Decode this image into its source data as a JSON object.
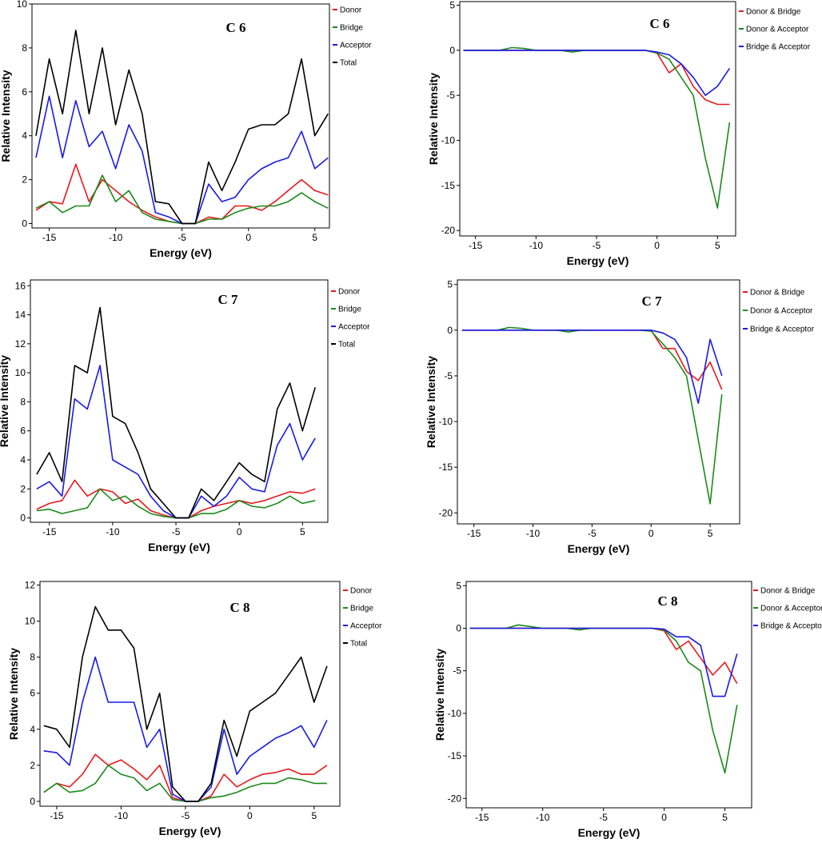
{
  "chart_data": [
    {
      "type": "line",
      "title": "C 6",
      "x_label": "Energy (eV)",
      "y_label": "Relative Intensity",
      "x": [
        -16,
        -15,
        -14,
        -13,
        -12,
        -11,
        -10,
        -9,
        -8,
        -7,
        -6,
        -5,
        -4,
        -3,
        -2,
        -1,
        0,
        1,
        2,
        3,
        4,
        5,
        6
      ],
      "xlim": [
        -16.3,
        6.1
      ],
      "ylim": [
        -0.2,
        10
      ],
      "xticks": [
        -15,
        -10,
        -5,
        0,
        5
      ],
      "yticks": [
        0,
        2,
        4,
        6,
        8,
        10
      ],
      "series": [
        {
          "name": "Donor",
          "color": "#e8191c",
          "values": [
            0.6,
            1,
            0.9,
            2.7,
            1,
            2,
            1.5,
            1,
            0.6,
            0.3,
            0.1,
            0,
            0,
            0.3,
            0.2,
            0.8,
            0.8,
            0.6,
            1,
            1.5,
            2,
            1.5,
            1.3
          ]
        },
        {
          "name": "Bridge",
          "color": "#1a8a1a",
          "values": [
            0.7,
            1,
            0.5,
            0.8,
            0.8,
            2.2,
            1,
            1.5,
            0.5,
            0.2,
            0.1,
            0,
            0,
            0.2,
            0.2,
            0.5,
            0.7,
            0.8,
            0.8,
            1,
            1.4,
            1,
            0.7
          ]
        },
        {
          "name": "Acceptor",
          "color": "#1a1ae8",
          "values": [
            3,
            5.8,
            3,
            5.6,
            3.5,
            4.2,
            2.5,
            4.5,
            3.3,
            0.5,
            0.3,
            0,
            0,
            1.8,
            1,
            1.2,
            2,
            2.5,
            2.8,
            3,
            4.2,
            2.5,
            3
          ]
        },
        {
          "name": "Total",
          "color": "#000000",
          "values": [
            4,
            7.5,
            5,
            8.8,
            5,
            8,
            4.5,
            7,
            5,
            1,
            0.9,
            0,
            0,
            2.8,
            1.5,
            2.8,
            4.3,
            4.5,
            4.5,
            5,
            7.5,
            4,
            5
          ]
        }
      ]
    },
    {
      "type": "line",
      "title": "C 6",
      "x_label": "Energy (eV)",
      "y_label": "Relative Intensity",
      "x": [
        -16,
        -15,
        -14,
        -13,
        -12,
        -11,
        -10,
        -9,
        -8,
        -7,
        -6,
        -5,
        -4,
        -3,
        -2,
        -1,
        0,
        1,
        2,
        3,
        4,
        5,
        6
      ],
      "xlim": [
        -16.3,
        6.5
      ],
      "ylim": [
        -20.6,
        5.4
      ],
      "xticks": [
        -15,
        -10,
        -5,
        0,
        5
      ],
      "yticks": [
        -20,
        -15,
        -10,
        -5,
        0,
        5
      ],
      "series": [
        {
          "name": "Donor & Bridge",
          "color": "#e8191c",
          "values": [
            0,
            0,
            0,
            0,
            0,
            0,
            0,
            0,
            0,
            0,
            0,
            0,
            0,
            0,
            0,
            0,
            -0.3,
            -2.5,
            -1.5,
            -4,
            -5.5,
            -6,
            -6
          ]
        },
        {
          "name": "Donor & Acceptor",
          "color": "#1a8a1a",
          "values": [
            0,
            0,
            0,
            0,
            0.3,
            0.2,
            0,
            0,
            0,
            -0.2,
            0,
            0,
            0,
            0,
            0,
            0,
            -0.3,
            -1,
            -3,
            -5,
            -12,
            -17.5,
            -8
          ]
        },
        {
          "name": "Bridge & Acceptor",
          "color": "#1a1ae8",
          "values": [
            0,
            0,
            0,
            0,
            0,
            0,
            0,
            0,
            0,
            0,
            0,
            0,
            0,
            0,
            0,
            0,
            -0.2,
            -0.5,
            -1.5,
            -3,
            -5,
            -4,
            -2
          ]
        }
      ]
    },
    {
      "type": "line",
      "title": "C 7",
      "x_label": "Energy (eV)",
      "y_label": "Relative Intensity",
      "x": [
        -16,
        -15,
        -14,
        -13,
        -12,
        -11,
        -10,
        -9,
        -8,
        -7,
        -6,
        -5,
        -4,
        -3,
        -2,
        -1,
        0,
        1,
        2,
        3,
        4,
        5,
        6
      ],
      "xlim": [
        -16.5,
        7
      ],
      "ylim": [
        -0.3,
        16.4
      ],
      "xticks": [
        -15,
        -10,
        -5,
        0,
        5
      ],
      "yticks": [
        0,
        2,
        4,
        6,
        8,
        10,
        12,
        14,
        16
      ],
      "series": [
        {
          "name": "Donor",
          "color": "#e8191c",
          "values": [
            0.6,
            1,
            1.2,
            2.6,
            1.5,
            2,
            1.8,
            1,
            1.3,
            0.5,
            0.2,
            0,
            0,
            0.5,
            0.8,
            1,
            1.2,
            1,
            1.2,
            1.5,
            1.8,
            1.7,
            2
          ]
        },
        {
          "name": "Bridge",
          "color": "#1a8a1a",
          "values": [
            0.5,
            0.6,
            0.3,
            0.5,
            0.7,
            2,
            1.2,
            1.5,
            0.8,
            0.3,
            0.1,
            0,
            0,
            0.3,
            0.3,
            0.6,
            1.2,
            0.8,
            0.7,
            1,
            1.5,
            1,
            1.2
          ]
        },
        {
          "name": "Acceptor",
          "color": "#1a1ae8",
          "values": [
            2,
            2.5,
            1.5,
            8.2,
            7.5,
            10.5,
            4,
            3.5,
            3,
            1.5,
            0.5,
            0,
            0,
            1.5,
            0.8,
            1.5,
            2.8,
            2,
            1.8,
            5,
            6.5,
            4,
            5.5
          ]
        },
        {
          "name": "Total",
          "color": "#000000",
          "values": [
            3,
            4.5,
            2.5,
            10.5,
            10,
            14.5,
            7,
            6.5,
            4.5,
            2,
            1,
            0,
            0,
            2,
            1.2,
            2.5,
            3.8,
            3,
            2.5,
            7.5,
            9.3,
            6,
            9
          ]
        }
      ]
    },
    {
      "type": "line",
      "title": "C 7",
      "x_label": "Energy (eV)",
      "y_label": "Relative Intensity",
      "x": [
        -16,
        -15,
        -14,
        -13,
        -12,
        -11,
        -10,
        -9,
        -8,
        -7,
        -6,
        -5,
        -4,
        -3,
        -2,
        -1,
        0,
        1,
        2,
        3,
        4,
        5,
        6
      ],
      "xlim": [
        -16.4,
        7.5
      ],
      "ylim": [
        -21.2,
        5.5
      ],
      "xticks": [
        -15,
        -10,
        -5,
        0,
        5
      ],
      "yticks": [
        -20,
        -15,
        -10,
        -5,
        0,
        5
      ],
      "series": [
        {
          "name": "Donor & Bridge",
          "color": "#e8191c",
          "values": [
            0,
            0,
            0,
            0,
            0,
            0,
            0,
            0,
            0,
            0,
            0,
            0,
            0,
            0,
            0,
            0,
            0,
            -2,
            -2,
            -4.5,
            -5.5,
            -3.5,
            -6.5
          ]
        },
        {
          "name": "Donor & Acceptor",
          "color": "#1a8a1a",
          "values": [
            0,
            0,
            0,
            0,
            0.3,
            0.2,
            0,
            0,
            0,
            -0.2,
            0,
            0,
            0,
            0,
            0,
            0,
            -0.1,
            -1.5,
            -3,
            -5,
            -12,
            -19,
            -7
          ]
        },
        {
          "name": "Bridge & Acceptor",
          "color": "#1a1ae8",
          "values": [
            0,
            0,
            0,
            0,
            0,
            0,
            0,
            0,
            0,
            0,
            0,
            0,
            0,
            0,
            0,
            0,
            0,
            -0.3,
            -1,
            -3,
            -8,
            -1,
            -5
          ]
        }
      ]
    },
    {
      "type": "line",
      "title": "C 8",
      "x_label": "Energy (eV)",
      "y_label": "Relative Intensity",
      "x": [
        -16,
        -15,
        -14,
        -13,
        -12,
        -11,
        -10,
        -9,
        -8,
        -7,
        -6,
        -5,
        -4,
        -3,
        -2,
        -1,
        0,
        1,
        2,
        3,
        4,
        5,
        6
      ],
      "xlim": [
        -16.3,
        7
      ],
      "ylim": [
        -0.27,
        12.2
      ],
      "xticks": [
        -15,
        -10,
        -5,
        0,
        5
      ],
      "yticks": [
        0,
        2,
        4,
        6,
        8,
        10,
        12
      ],
      "series": [
        {
          "name": "Donor",
          "color": "#e8191c",
          "values": [
            0.5,
            1,
            0.8,
            1.5,
            2.6,
            2,
            2.3,
            1.8,
            1.2,
            2,
            0.2,
            0,
            0,
            0.3,
            1.5,
            0.8,
            1.2,
            1.5,
            1.6,
            1.8,
            1.5,
            1.5,
            2
          ]
        },
        {
          "name": "Bridge",
          "color": "#1a8a1a",
          "values": [
            0.5,
            1,
            0.5,
            0.6,
            1,
            2,
            1.5,
            1.3,
            0.6,
            1,
            0.1,
            0,
            0,
            0.2,
            0.3,
            0.5,
            0.8,
            1,
            1,
            1.3,
            1.2,
            1,
            1
          ]
        },
        {
          "name": "Acceptor",
          "color": "#1a1ae8",
          "values": [
            2.8,
            2.7,
            2,
            5.5,
            8,
            5.5,
            5.5,
            5.5,
            3,
            4,
            0.4,
            0,
            0,
            0.8,
            4,
            1.5,
            2.5,
            3,
            3.5,
            3.8,
            4.2,
            3,
            4.5
          ]
        },
        {
          "name": "Total",
          "color": "#000000",
          "values": [
            4.2,
            4,
            3,
            8,
            10.8,
            9.5,
            9.5,
            8.5,
            4,
            6,
            0.8,
            0,
            0,
            1,
            4.5,
            2.5,
            5,
            5.5,
            6,
            7,
            8,
            5.5,
            7.5
          ]
        }
      ]
    },
    {
      "type": "line",
      "title": "C 8",
      "x_label": "Energy (eV)",
      "y_label": "Relative Intensity",
      "x": [
        -16,
        -15,
        -14,
        -13,
        -12,
        -11,
        -10,
        -9,
        -8,
        -7,
        -6,
        -5,
        -4,
        -3,
        -2,
        -1,
        0,
        1,
        2,
        3,
        4,
        5,
        6
      ],
      "xlim": [
        -16.3,
        7.2
      ],
      "ylim": [
        -21.1,
        5.5
      ],
      "xticks": [
        -15,
        -10,
        -5,
        0,
        5
      ],
      "yticks": [
        -20,
        -15,
        -10,
        -5,
        0,
        5
      ],
      "series": [
        {
          "name": "Donor & Bridge",
          "color": "#e8191c",
          "values": [
            0,
            0,
            0,
            0,
            0,
            0,
            0,
            0,
            0,
            0,
            0,
            0,
            0,
            0,
            0,
            0,
            -0.3,
            -2.5,
            -1.5,
            -3.5,
            -5.5,
            -4,
            -6.5
          ]
        },
        {
          "name": "Donor & Acceptor",
          "color": "#1a8a1a",
          "values": [
            0,
            0,
            0,
            0,
            0.4,
            0.2,
            0,
            0,
            0,
            -0.2,
            0,
            0,
            0,
            0,
            0,
            0,
            -0.2,
            -1.5,
            -4,
            -5,
            -12,
            -17,
            -9
          ]
        },
        {
          "name": "Bridge & Acceptor",
          "color": "#1a1ae8",
          "values": [
            0,
            0,
            0,
            0,
            0,
            0,
            0,
            0,
            0,
            0,
            0,
            0,
            0,
            0,
            0,
            0,
            -0.1,
            -1,
            -1,
            -2,
            -8,
            -8,
            -3
          ]
        }
      ]
    }
  ]
}
